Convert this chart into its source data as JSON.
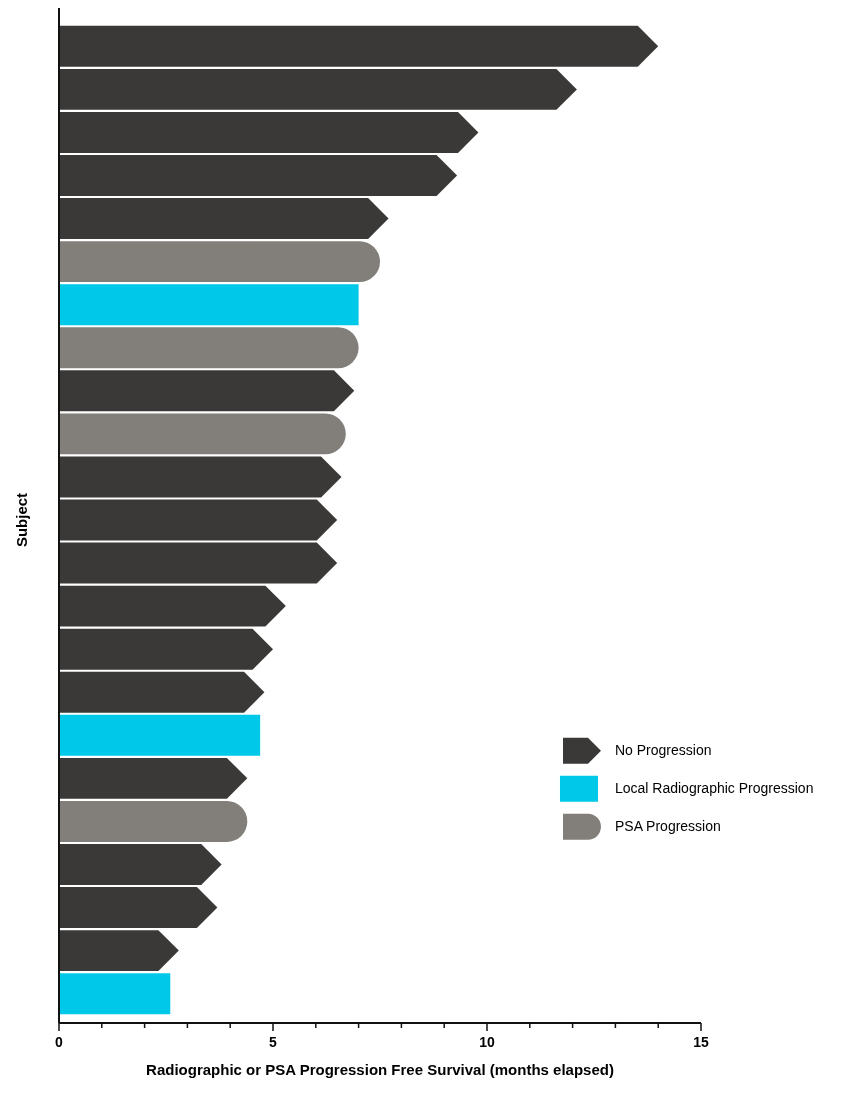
{
  "chart_data": {
    "type": "bar",
    "orientation": "horizontal",
    "xlabel": "Radiographic or PSA Progression Free Survival (months elapsed)",
    "ylabel": "Subject",
    "categories": [
      null,
      null,
      null,
      null,
      null,
      null,
      null,
      null,
      null,
      null,
      null,
      null,
      null,
      null,
      null,
      null,
      null,
      null,
      null,
      null,
      null,
      null,
      null
    ],
    "series": [
      {
        "name": "No Progression",
        "color": "#3a3937",
        "values": [
          14.0,
          12.1,
          9.8,
          9.3,
          7.7,
          null,
          null,
          null,
          6.9,
          null,
          6.6,
          6.5,
          6.5,
          5.3,
          5.0,
          4.8,
          null,
          4.4,
          null,
          3.8,
          3.7,
          2.8,
          null
        ]
      },
      {
        "name": "Local Radiographic Progression",
        "color": "#00c8e8",
        "values": [
          null,
          null,
          null,
          null,
          null,
          null,
          7.0,
          null,
          null,
          null,
          null,
          null,
          null,
          null,
          null,
          null,
          4.7,
          null,
          null,
          null,
          null,
          null,
          2.6
        ]
      },
      {
        "name": "PSA Progression",
        "color": "#827f7a",
        "values": [
          null,
          null,
          null,
          null,
          null,
          7.5,
          null,
          7.0,
          null,
          6.7,
          null,
          null,
          null,
          null,
          null,
          null,
          null,
          null,
          4.4,
          null,
          null,
          null,
          null
        ]
      }
    ],
    "xlim": [
      0,
      15
    ],
    "xticks": [
      0,
      {
        "value": 1,
        "label": null
      },
      {
        "value": 2,
        "label": null
      },
      {
        "value": 3,
        "label": null
      },
      {
        "value": 4,
        "label": null
      },
      5,
      {
        "value": 6,
        "label": null
      },
      {
        "value": 7,
        "label": null
      },
      {
        "value": 8,
        "label": null
      },
      {
        "value": 9,
        "label": null
      },
      10,
      {
        "value": 11,
        "label": null
      },
      {
        "value": 12,
        "label": null
      },
      {
        "value": 13,
        "label": null
      },
      {
        "value": 14,
        "label": null
      },
      15
    ],
    "legend": "right"
  }
}
